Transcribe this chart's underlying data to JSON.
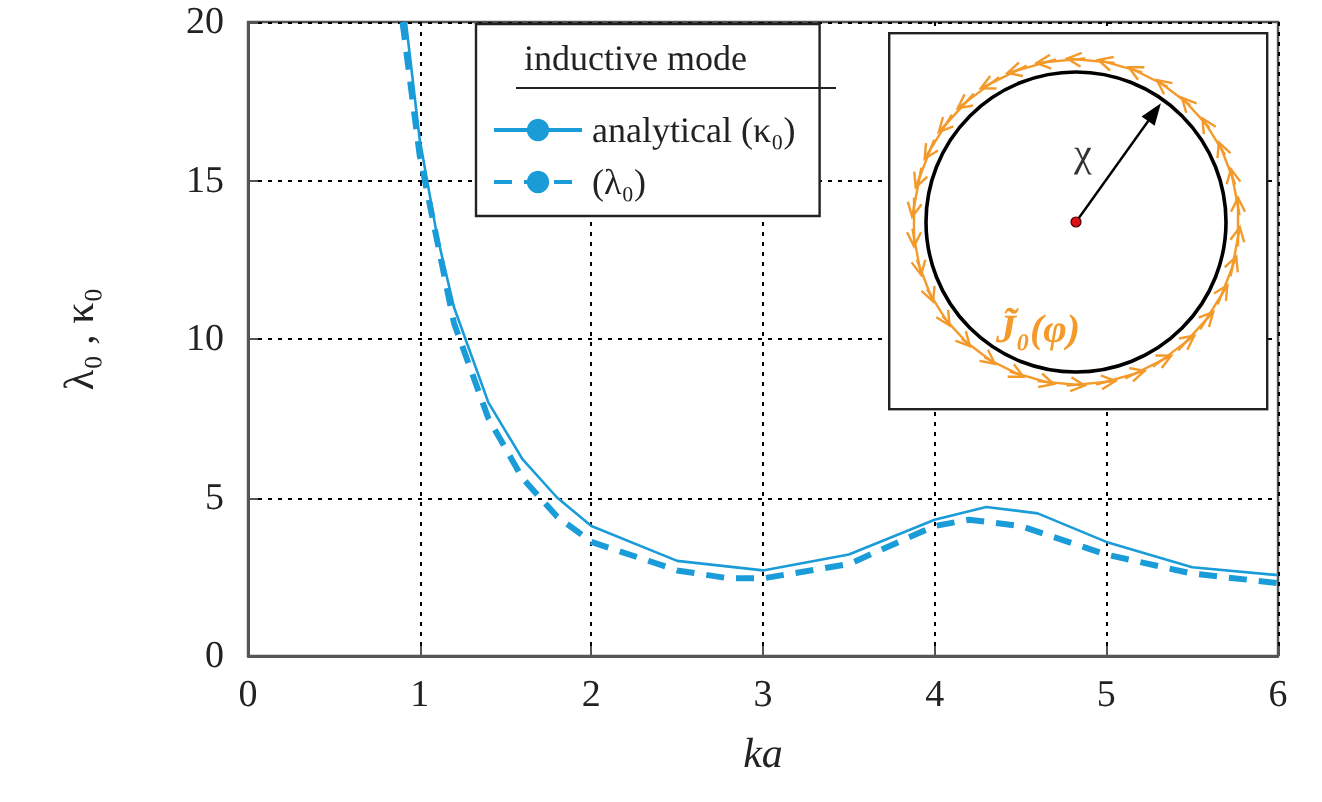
{
  "chart_data": {
    "type": "line",
    "xlabel": "ka",
    "ylabel": "λ₀ , κ₀",
    "legend_title": "inductive mode",
    "legend": "top",
    "xlim": [
      0,
      6
    ],
    "ylim": [
      0,
      20
    ],
    "xticks": [
      0,
      1,
      2,
      3,
      4,
      5,
      6
    ],
    "yticks": [
      0,
      5,
      10,
      15,
      20
    ],
    "grid": true,
    "marker": "none",
    "series": [
      {
        "name": "analytical (κ₀)",
        "color": "#1a9cd8",
        "line_style": "solid",
        "x": [
          0.92,
          1.0,
          1.1,
          1.2,
          1.4,
          1.6,
          1.8,
          2.0,
          2.5,
          3.0,
          3.5,
          4.0,
          4.3,
          4.6,
          5.0,
          5.5,
          6.0
        ],
        "values": [
          20,
          16.3,
          13.3,
          11.0,
          8.0,
          6.2,
          5.0,
          4.1,
          3.0,
          2.7,
          3.2,
          4.3,
          4.7,
          4.5,
          3.6,
          2.8,
          2.55
        ]
      },
      {
        "name": "(λ₀)",
        "color": "#1a9cd8",
        "line_style": "dashed",
        "x": [
          0.9,
          1.0,
          1.2,
          1.4,
          1.6,
          1.8,
          2.0,
          2.5,
          2.8,
          3.0,
          3.5,
          4.0,
          4.2,
          4.5,
          5.0,
          5.5,
          6.0
        ],
        "values": [
          20,
          15.8,
          10.5,
          7.5,
          5.6,
          4.4,
          3.6,
          2.7,
          2.45,
          2.45,
          2.9,
          4.1,
          4.3,
          4.1,
          3.2,
          2.6,
          2.3
        ]
      }
    ],
    "annotations": [
      "χ",
      "J̃₀(φ)"
    ]
  }
}
